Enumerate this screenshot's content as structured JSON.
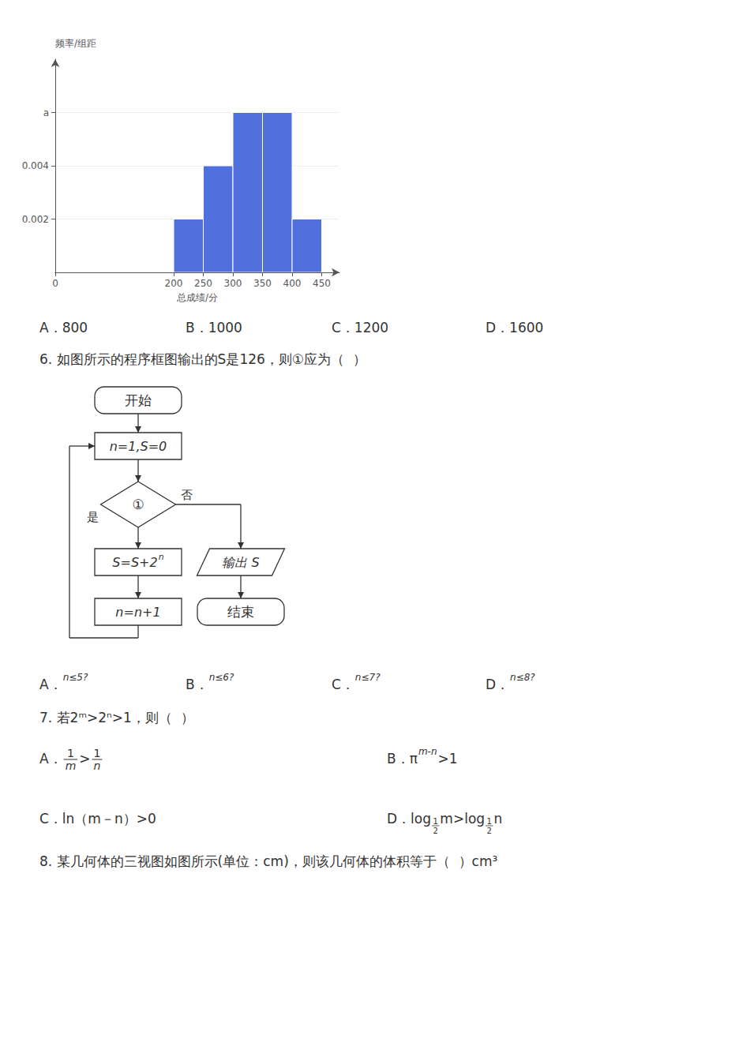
{
  "chart_data": {
    "type": "histogram",
    "bins": [
      200,
      250,
      300,
      350,
      400,
      450
    ],
    "values": [
      0.002,
      0.004,
      0.006,
      0.006,
      0.002
    ],
    "xlabel": "总成绩/分",
    "ylabel": "频率/组距",
    "xlim": [
      0,
      480
    ],
    "ylim": [
      0,
      0.008
    ],
    "xticks": [
      0,
      200,
      250,
      300,
      350,
      400,
      450
    ],
    "yticks": [
      0.002,
      0.004,
      {
        "value": 0.006,
        "label": "a"
      }
    ],
    "grid": true,
    "annotations": {
      "lines_before": [
        [
          [
            {
              "t": "A．800"
            }
          ],
          [
            {
              "t": "B．1000"
            }
          ],
          [
            {
              "t": "C．1200"
            }
          ],
          [
            {
              "t": "D．1600"
            }
          ]
        ],
        [
          [
            {
              "t": "6. 如图所示的程序框图输出的"
            },
            {
              "t": "S"
            },
            {
              "t": "是126，则①应为（  ）"
            }
          ]
        ]
      ],
      "flowchart": {
        "start": "开始",
        "init": "n=1,S=0",
        "decision": "①",
        "yes_label": "是",
        "no_label": "否",
        "process1": "S=S+2",
        "process1_sup": "n",
        "process2": "n=n+1",
        "output": "输出 S",
        "end": "结束"
      },
      "lines_after": [
        [
          [
            {
              "t": "A．"
            },
            {
              "sup": "n≤5?"
            }
          ],
          [
            {
              "t": "B．"
            },
            {
              "sup": "n≤6?"
            }
          ],
          [
            {
              "t": "C．"
            },
            {
              "sup": "n≤7?"
            }
          ],
          [
            {
              "t": "D．"
            },
            {
              "sup": "n≤8?"
            }
          ]
        ],
        [
          [
            {
              "t": "7. 若2ᵐ>2ⁿ>1，则（  ）"
            }
          ]
        ],
        [
          [
            {
              "t": "A．"
            },
            {
              "frac": [
                "1",
                "m"
              ]
            },
            {
              "t": ">"
            },
            {
              "frac": [
                "1",
                "n"
              ]
            }
          ],
          [
            {
              "t": "B．π"
            },
            {
              "sup": "m-n"
            },
            {
              "t": ">1"
            }
          ]
        ],
        [
          [
            {
              "t": "C．ln（m－n）>0"
            }
          ],
          [
            {
              "t": "D．"
            },
            {
              "t": "log"
            },
            {
              "subfrac": [
                "1",
                "2"
              ]
            },
            {
              "t": "m>log"
            },
            {
              "subfrac": [
                "1",
                "2"
              ]
            },
            {
              "t": "n"
            }
          ]
        ],
        [
          [
            {
              "t": "8. 某几何体的三视图如图所示(单位：cm)，则该几何体的体积等于（  ）cm³"
            }
          ]
        ]
      ]
    }
  }
}
